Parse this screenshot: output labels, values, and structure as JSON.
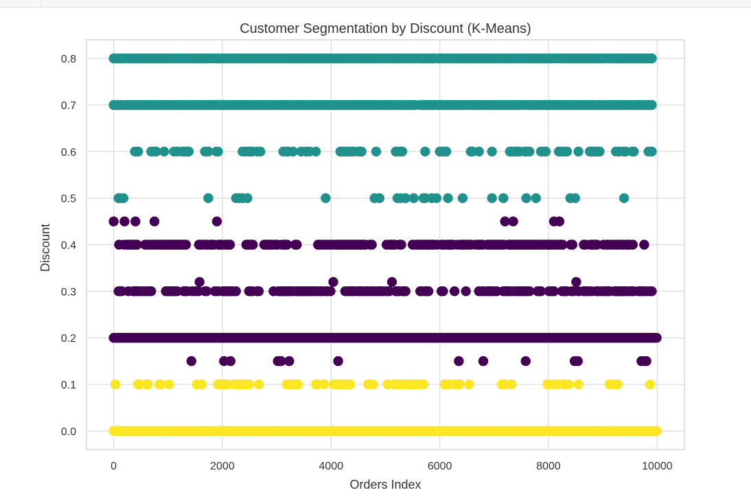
{
  "chart_data": {
    "type": "scatter",
    "title": "Customer Segmentation by Discount (K-Means)",
    "xlabel": "Orders Index",
    "ylabel": "Discount",
    "xlim": [
      -500,
      10500
    ],
    "ylim": [
      -0.04,
      0.84
    ],
    "xticks": [
      0,
      2000,
      4000,
      6000,
      8000,
      10000
    ],
    "xtick_labels": [
      "0",
      "2000",
      "4000",
      "6000",
      "8000",
      "10000"
    ],
    "yticks": [
      0.0,
      0.1,
      0.2,
      0.3,
      0.4,
      0.5,
      0.6,
      0.7,
      0.8
    ],
    "ytick_labels": [
      "0.0",
      "0.1",
      "0.2",
      "0.3",
      "0.4",
      "0.5",
      "0.6",
      "0.7",
      "0.8"
    ],
    "grid": true,
    "cluster_colors": [
      "#440154",
      "#21918c",
      "#fde725"
    ],
    "levels": [
      {
        "discount": 0.0,
        "cluster": 2,
        "x_start": 0,
        "x_end": 10000,
        "density": 1.0
      },
      {
        "discount": 0.1,
        "cluster": 2,
        "x_start": 0,
        "x_end": 9900,
        "density": 0.55
      },
      {
        "discount": 0.15,
        "cluster": 0,
        "x_start": 350,
        "x_end": 9900,
        "density": 0.25
      },
      {
        "discount": 0.2,
        "cluster": 0,
        "x_start": 0,
        "x_end": 10000,
        "density": 1.0
      },
      {
        "discount": 0.3,
        "cluster": 0,
        "x_start": 0,
        "x_end": 9900,
        "density": 0.75
      },
      {
        "discount": 0.32,
        "cluster": 0,
        "x_start": 50,
        "x_end": 9950,
        "density": 0.12
      },
      {
        "discount": 0.4,
        "cluster": 0,
        "x_start": 100,
        "x_end": 9900,
        "density": 0.8
      },
      {
        "discount": 0.45,
        "cluster": 0,
        "points": [
          0,
          200,
          400,
          750,
          1900,
          7200,
          7350,
          8100,
          8200
        ]
      },
      {
        "discount": 0.5,
        "cluster": 1,
        "x_start": 0,
        "x_end": 9500,
        "density": 0.4
      },
      {
        "discount": 0.6,
        "cluster": 1,
        "x_start": 0,
        "x_end": 9900,
        "density": 0.6
      },
      {
        "discount": 0.7,
        "cluster": 1,
        "x_start": 0,
        "x_end": 9900,
        "density": 0.95
      },
      {
        "discount": 0.8,
        "cluster": 1,
        "x_start": 0,
        "x_end": 9900,
        "density": 0.95
      }
    ]
  }
}
